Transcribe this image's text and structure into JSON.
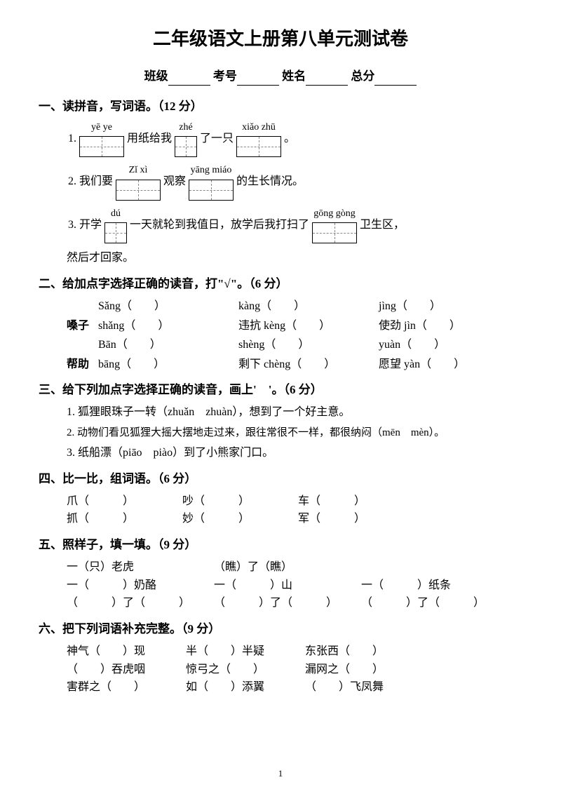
{
  "title": "二年级语文上册第八单元测试卷",
  "info": {
    "class_label": "班级",
    "exam_no_label": "考号",
    "name_label": "姓名",
    "score_label": "总分"
  },
  "s1": {
    "head": "一、读拼音，写词语。（12 分）",
    "r1": {
      "num": "1.",
      "p1": "yē ye",
      "t1": "用纸给我",
      "p2": "zhé",
      "t2": "了一只",
      "p3": "xiǎo zhū",
      "t3": "。"
    },
    "r2": {
      "num": "2. 我们要",
      "p1": "Zǐ  xì",
      "t1": "观察",
      "p2": "yāng miáo",
      "t2": "的生长情况。"
    },
    "r3": {
      "num": "3. 开学",
      "p1": "dú",
      "t1": "一天就轮到我值日，放学后我打扫了",
      "p2": "gōng gòng",
      "t2": "卫生区，",
      "t3": "然后才回家。"
    }
  },
  "s2": {
    "head": "二、给加点字选择正确的读音，打\"√\"。（6 分）",
    "rows": [
      {
        "w": "",
        "a": "Sǎng（　　）",
        "b": "kàng（　　）",
        "c": "jìng（　　）"
      },
      {
        "w": "嗓子",
        "a": "shǎng（　　）",
        "b": "违抗 kèng（　　）",
        "c": "使劲 jìn（　　）"
      },
      {
        "w": "",
        "a": "Bān（　　）",
        "b": "shèng（　　）",
        "c": "yuàn（　　）"
      },
      {
        "w": "帮助",
        "a": "bāng（　　）",
        "b": "剩下 chèng（　　）",
        "c": "愿望 yàn（　　）"
      }
    ]
  },
  "s3": {
    "head": "三、给下列加点字选择正确的读音，画上'　'。（6 分）",
    "l1": "1. 狐狸眼珠子一转（zhuǎn　zhuàn），想到了一个好主意。",
    "l2": "2. 动物们看见狐狸大摇大摆地走过来，跟往常很不一样，都很纳闷（mēn　mèn）。",
    "l3": "3. 纸船漂（piāo　piào）到了小熊家门口。"
  },
  "s4": {
    "head": "四、比一比，组词语。（6 分）",
    "r1": [
      "爪（　　　）",
      "吵（　　　）",
      "车（　　　）"
    ],
    "r2": [
      "抓（　　　）",
      "妙（　　　）",
      "军（　　　）"
    ]
  },
  "s5": {
    "head": "五、照样子，填一填。（9 分）",
    "r1": [
      "一（只）老虎",
      "（瞧）了（瞧）",
      ""
    ],
    "r2": [
      "一（　　　）奶酪",
      "一（　　　）山",
      "一（　　　）纸条"
    ],
    "r3": [
      "（　　　）了（　　　）",
      "（　　　）了（　　　）",
      "（　　　）了（　　　）"
    ]
  },
  "s6": {
    "head": "六、把下列词语补充完整。（9 分）",
    "r1": [
      "神气（　　）现",
      "半（　　）半疑",
      "东张西（　　）"
    ],
    "r2": [
      "（　　）吞虎咽",
      "惊弓之（　　）",
      "漏网之（　　）"
    ],
    "r3": [
      "害群之（　　）",
      "如（　　）添翼",
      "（　　）飞凤舞"
    ]
  },
  "page_num": "1"
}
